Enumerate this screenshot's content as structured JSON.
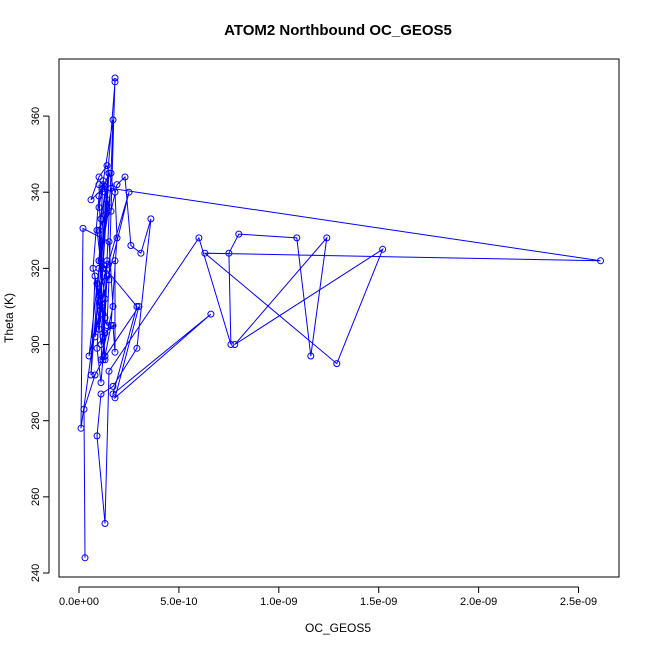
{
  "chart_data": {
    "type": "line",
    "title": "ATOM2 Northbound OC_GEOS5",
    "xlabel": "OC_GEOS5",
    "ylabel": "Theta (K)",
    "xlim": [
      0,
      2.6e-09
    ],
    "ylim": [
      240,
      370
    ],
    "x_ticks": [
      0,
      5e-10,
      1e-09,
      1.5e-09,
      2e-09,
      2.5e-09
    ],
    "x_tick_labels": [
      "0.0e+00",
      "5.0e-10",
      "1.0e-09",
      "1.5e-09",
      "2.0e-09",
      "2.5e-09"
    ],
    "y_ticks": [
      240,
      260,
      280,
      300,
      320,
      340,
      360
    ],
    "y_tick_labels": [
      "240",
      "260",
      "280",
      "300",
      "320",
      "340",
      "360"
    ],
    "grid": false,
    "series_color": "#0000ff",
    "series": [
      {
        "x": [
          3e-11,
          2.5e-11,
          8e-11,
          1.3e-10,
          1.6e-10,
          1.9e-10,
          1.8e-10,
          1.4e-10,
          1e-10,
          6e-11,
          1.2e-10,
          1.5e-10,
          8e-11,
          1.1e-10,
          1.3e-10,
          9e-11,
          1.6e-10,
          1.9e-10,
          2.3e-10,
          2.6e-10,
          3.1e-10,
          3.6e-10,
          2.9e-10,
          1.7e-10,
          1.1e-10,
          9e-11,
          1.3e-10,
          1.5e-10,
          6e-10,
          7.6e-10,
          7.5e-10,
          8e-10,
          1.09e-09,
          1.16e-09,
          1.24e-09,
          7.8e-10,
          1.52e-09,
          1.29e-09,
          6.3e-10,
          2.61e-09,
          1.6e-10,
          1e-10,
          1.4e-10,
          1.2e-10,
          3e-10,
          1.8e-10,
          6.6e-10,
          1.7e-10,
          2.9e-10,
          1e-10,
          1.2e-10,
          1.5e-10,
          1e-10,
          5e-11,
          2.5e-10,
          1e-10,
          1.2e-10,
          1.4e-10,
          1.5e-10,
          1.8e-10,
          1.8e-10,
          1.1e-10,
          9e-11,
          1.3e-10,
          1e-10,
          1.3e-10,
          1.5e-10,
          1e-10,
          1.4e-10,
          1.6e-10,
          1.7e-10,
          1e-10,
          1.1e-10,
          1.3e-10,
          6e-11,
          8e-11,
          1.1e-10,
          1.3e-10,
          7e-11,
          1e-10,
          1.2e-10,
          1.4e-10,
          9e-11,
          1.1e-10,
          1.3e-10,
          1.7e-10,
          1.8e-10,
          1.8e-10,
          1.2e-10,
          1e-11,
          2e-11,
          1.5e-10,
          1.7e-10,
          1.1e-10,
          1.4e-10,
          1.2e-10,
          1e-10
        ],
        "y": [
          244.0,
          283.0,
          292.0,
          297.0,
          305.0,
          328.0,
          340.0,
          347.0,
          344.0,
          338.0,
          341.0,
          345.0,
          302.0,
          310.0,
          312.0,
          330.0,
          335.0,
          342.0,
          344.0,
          326.0,
          324.0,
          333.0,
          299.0,
          289.0,
          287.0,
          276.0,
          253.0,
          293.0,
          328.0,
          300.0,
          324.0,
          329.0,
          328.0,
          297.0,
          328.0,
          300.0,
          325.0,
          295.0,
          324.0,
          322.0,
          341.0,
          322.0,
          318.0,
          296.0,
          310.0,
          286.0,
          308.0,
          287.0,
          310.0,
          322.0,
          343.0,
          336.0,
          320.0,
          297.0,
          340.0,
          313.0,
          308.0,
          305.0,
          317.0,
          370.0,
          369.0,
          322.0,
          316.0,
          296.0,
          330.0,
          334.0,
          345.0,
          304.0,
          322.0,
          345.0,
          359.0,
          336.0,
          333.0,
          340.0,
          292.0,
          318.0,
          300.0,
          307.0,
          320.0,
          339.0,
          342.0,
          338.0,
          299.0,
          290.0,
          303.0,
          305.0,
          298.0,
          322.0,
          320.0,
          278.0,
          330.5,
          327.0,
          310.0,
          296.0,
          321.0,
          302.0,
          342.0
        ]
      }
    ]
  }
}
